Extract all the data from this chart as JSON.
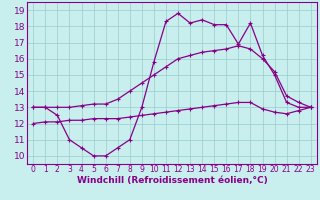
{
  "title": "",
  "xlabel": "Windchill (Refroidissement éolien,°C)",
  "bg_color": "#c8eeee",
  "line_color": "#880088",
  "grid_color": "#99cccc",
  "spine_color": "#880088",
  "xlim": [
    -0.5,
    23.5
  ],
  "ylim": [
    9.5,
    19.5
  ],
  "xticks": [
    0,
    1,
    2,
    3,
    4,
    5,
    6,
    7,
    8,
    9,
    10,
    11,
    12,
    13,
    14,
    15,
    16,
    17,
    18,
    19,
    20,
    21,
    22,
    23
  ],
  "yticks": [
    10,
    11,
    12,
    13,
    14,
    15,
    16,
    17,
    18,
    19
  ],
  "line1_x": [
    0,
    1,
    2,
    3,
    4,
    5,
    6,
    7,
    8,
    9,
    10,
    11,
    12,
    13,
    14,
    15,
    16,
    17,
    18,
    19,
    20,
    21,
    22,
    23
  ],
  "line1_y": [
    13,
    13,
    12.5,
    11,
    10.5,
    10,
    10,
    10.5,
    11,
    13,
    15.8,
    18.3,
    18.8,
    18.2,
    18.4,
    18.1,
    18.1,
    16.9,
    18.2,
    16.2,
    15,
    13.3,
    13,
    13
  ],
  "line2_x": [
    0,
    1,
    2,
    3,
    4,
    5,
    6,
    7,
    8,
    9,
    10,
    11,
    12,
    13,
    14,
    15,
    16,
    17,
    18,
    19,
    20,
    21,
    22,
    23
  ],
  "line2_y": [
    13,
    13,
    13,
    13,
    13.1,
    13.2,
    13.2,
    13.5,
    14.0,
    14.5,
    15.0,
    15.5,
    16.0,
    16.2,
    16.4,
    16.5,
    16.6,
    16.8,
    16.6,
    16.0,
    15.2,
    13.7,
    13.3,
    13
  ],
  "line3_x": [
    0,
    1,
    2,
    3,
    4,
    5,
    6,
    7,
    8,
    9,
    10,
    11,
    12,
    13,
    14,
    15,
    16,
    17,
    18,
    19,
    20,
    21,
    22,
    23
  ],
  "line3_y": [
    12.0,
    12.1,
    12.1,
    12.2,
    12.2,
    12.3,
    12.3,
    12.3,
    12.4,
    12.5,
    12.6,
    12.7,
    12.8,
    12.9,
    13.0,
    13.1,
    13.2,
    13.3,
    13.3,
    12.9,
    12.7,
    12.6,
    12.8,
    13.0
  ],
  "xlabel_fontsize": 6.5,
  "ytick_fontsize": 6.5,
  "xtick_fontsize": 5.5
}
